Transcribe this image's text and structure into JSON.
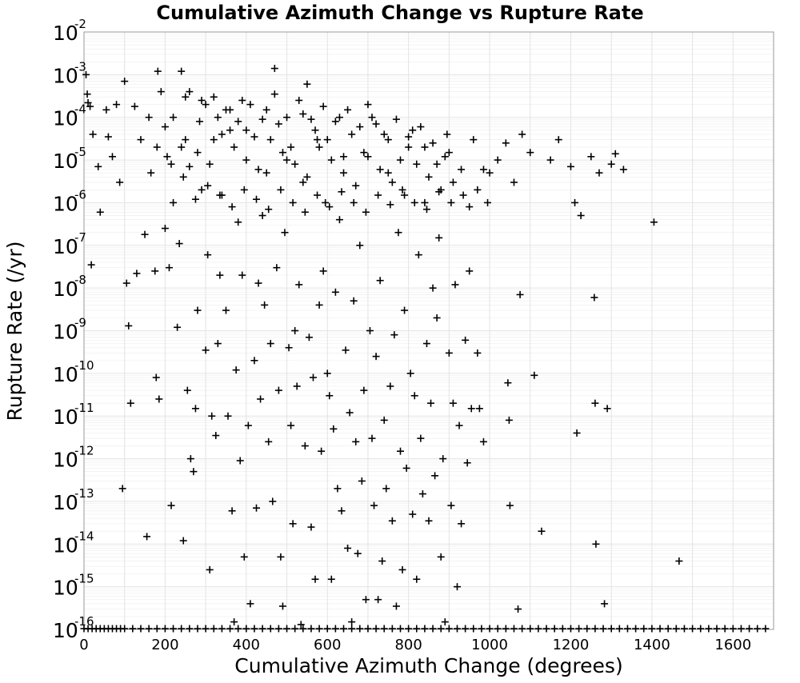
{
  "chart_data": {
    "type": "scatter",
    "title": "Cumulative Azimuth Change vs Rupture Rate",
    "xlabel": "Cumulative Azimuth Change (degrees)",
    "ylabel": "Rupture Rate (/yr)",
    "xlim": [
      0,
      1700
    ],
    "ylim": [
      1e-16,
      0.01
    ],
    "yscale": "log",
    "grid": true,
    "marker": "+",
    "marker_color": "#000000",
    "x_ticks": [
      "0",
      "200",
      "400",
      "600",
      "800",
      "1000",
      "1200",
      "1400",
      "1600"
    ],
    "y_ticks": [
      {
        "base": "10",
        "exp": "-16"
      },
      {
        "base": "10",
        "exp": "-15"
      },
      {
        "base": "10",
        "exp": "-14"
      },
      {
        "base": "10",
        "exp": "-13"
      },
      {
        "base": "10",
        "exp": "-12"
      },
      {
        "base": "10",
        "exp": "-11"
      },
      {
        "base": "10",
        "exp": "-10"
      },
      {
        "base": "10",
        "exp": "-9"
      },
      {
        "base": "10",
        "exp": "-8"
      },
      {
        "base": "10",
        "exp": "-7"
      },
      {
        "base": "10",
        "exp": "-6"
      },
      {
        "base": "10",
        "exp": "-5"
      },
      {
        "base": "10",
        "exp": "-4"
      },
      {
        "base": "10",
        "exp": "-3"
      },
      {
        "base": "10",
        "exp": "-2"
      }
    ],
    "points": [
      [
        5,
        0.001
      ],
      [
        8,
        0.00035
      ],
      [
        10,
        0.00022
      ],
      [
        15,
        0.00018
      ],
      [
        18,
        3.5e-08
      ],
      [
        22,
        4e-05
      ],
      [
        35,
        7e-06
      ],
      [
        40,
        6e-07
      ],
      [
        55,
        0.00015
      ],
      [
        60,
        3.5e-05
      ],
      [
        70,
        1.2e-05
      ],
      [
        80,
        0.0002
      ],
      [
        88,
        3e-06
      ],
      [
        95,
        2e-13
      ],
      [
        100,
        0.0007
      ],
      [
        105,
        1.3e-08
      ],
      [
        110,
        1.3e-09
      ],
      [
        115,
        2e-11
      ],
      [
        125,
        0.00018
      ],
      [
        130,
        2.2e-08
      ],
      [
        140,
        3e-05
      ],
      [
        150,
        1.8e-07
      ],
      [
        155,
        1.5e-14
      ],
      [
        160,
        0.0001
      ],
      [
        165,
        5e-06
      ],
      [
        175,
        2.5e-08
      ],
      [
        178,
        8e-11
      ],
      [
        182,
        0.0012
      ],
      [
        185,
        2.5e-11
      ],
      [
        190,
        0.0004
      ],
      [
        200,
        2.5e-07
      ],
      [
        205,
        1.2e-05
      ],
      [
        210,
        3e-08
      ],
      [
        215,
        8e-14
      ],
      [
        220,
        1e-06
      ],
      [
        230,
        1.2e-09
      ],
      [
        235,
        1.1e-07
      ],
      [
        240,
        0.0012
      ],
      [
        245,
        1.2e-14
      ],
      [
        250,
        0.0003
      ],
      [
        255,
        4e-11
      ],
      [
        260,
        7e-06
      ],
      [
        263,
        1e-12
      ],
      [
        270,
        5e-13
      ],
      [
        275,
        1.5e-11
      ],
      [
        280,
        3e-09
      ],
      [
        285,
        8e-05
      ],
      [
        290,
        2e-06
      ],
      [
        300,
        3.5e-10
      ],
      [
        305,
        6e-08
      ],
      [
        310,
        2.5e-15
      ],
      [
        315,
        1e-11
      ],
      [
        320,
        3e-05
      ],
      [
        325,
        3.5e-12
      ],
      [
        330,
        5e-10
      ],
      [
        335,
        2e-08
      ],
      [
        340,
        1.5e-06
      ],
      [
        350,
        3e-09
      ],
      [
        355,
        1e-11
      ],
      [
        360,
        0.00015
      ],
      [
        365,
        6e-14
      ],
      [
        370,
        1.5e-16
      ],
      [
        375,
        1.2e-10
      ],
      [
        380,
        3.5e-07
      ],
      [
        385,
        9e-13
      ],
      [
        390,
        2e-08
      ],
      [
        395,
        5e-15
      ],
      [
        400,
        5e-05
      ],
      [
        405,
        6e-12
      ],
      [
        410,
        4e-16
      ],
      [
        420,
        2e-10
      ],
      [
        425,
        7e-14
      ],
      [
        430,
        1.3e-08
      ],
      [
        435,
        2.5e-11
      ],
      [
        440,
        5e-07
      ],
      [
        445,
        4e-09
      ],
      [
        450,
        5e-06
      ],
      [
        455,
        2.5e-12
      ],
      [
        460,
        5e-10
      ],
      [
        465,
        1e-13
      ],
      [
        470,
        0.0014
      ],
      [
        475,
        3e-08
      ],
      [
        480,
        4e-11
      ],
      [
        485,
        5e-15
      ],
      [
        490,
        3.5e-16
      ],
      [
        495,
        2e-07
      ],
      [
        500,
        1e-05
      ],
      [
        505,
        4e-10
      ],
      [
        510,
        6e-12
      ],
      [
        515,
        3e-14
      ],
      [
        520,
        1e-09
      ],
      [
        525,
        5e-11
      ],
      [
        530,
        1.2e-08
      ],
      [
        535,
        1.3e-16
      ],
      [
        540,
        3e-06
      ],
      [
        545,
        2e-12
      ],
      [
        550,
        0.0006
      ],
      [
        555,
        7e-10
      ],
      [
        560,
        2.5e-14
      ],
      [
        565,
        8e-11
      ],
      [
        570,
        1.5e-15
      ],
      [
        575,
        3e-05
      ],
      [
        580,
        4e-09
      ],
      [
        585,
        1.5e-12
      ],
      [
        590,
        2.5e-08
      ],
      [
        595,
        1e-06
      ],
      [
        600,
        1e-10
      ],
      [
        605,
        3e-11
      ],
      [
        610,
        1.5e-15
      ],
      [
        615,
        5e-12
      ],
      [
        620,
        8e-09
      ],
      [
        625,
        2e-13
      ],
      [
        630,
        4e-07
      ],
      [
        635,
        6e-14
      ],
      [
        640,
        1.2e-05
      ],
      [
        645,
        3.5e-10
      ],
      [
        650,
        8e-15
      ],
      [
        655,
        1.2e-11
      ],
      [
        660,
        1.5e-16
      ],
      [
        665,
        5e-09
      ],
      [
        670,
        2.5e-12
      ],
      [
        675,
        6e-15
      ],
      [
        680,
        1e-07
      ],
      [
        685,
        3e-13
      ],
      [
        690,
        4e-11
      ],
      [
        695,
        5e-16
      ],
      [
        700,
        0.0002
      ],
      [
        705,
        1e-09
      ],
      [
        710,
        3e-12
      ],
      [
        715,
        8e-14
      ],
      [
        720,
        2.5e-10
      ],
      [
        725,
        5e-16
      ],
      [
        730,
        1.5e-08
      ],
      [
        735,
        4e-15
      ],
      [
        740,
        8e-12
      ],
      [
        745,
        2e-13
      ],
      [
        750,
        5e-06
      ],
      [
        755,
        5e-11
      ],
      [
        760,
        3.5e-14
      ],
      [
        765,
        8e-10
      ],
      [
        770,
        3.5e-16
      ],
      [
        775,
        2e-07
      ],
      [
        780,
        1.5e-12
      ],
      [
        785,
        2.5e-15
      ],
      [
        790,
        3e-09
      ],
      [
        795,
        6e-13
      ],
      [
        800,
        2e-05
      ],
      [
        805,
        1e-10
      ],
      [
        810,
        5e-14
      ],
      [
        815,
        3e-11
      ],
      [
        820,
        1.5e-15
      ],
      [
        825,
        6e-08
      ],
      [
        830,
        3e-12
      ],
      [
        835,
        1.5e-13
      ],
      [
        840,
        1e-06
      ],
      [
        845,
        5e-10
      ],
      [
        850,
        3.5e-14
      ],
      [
        855,
        2e-11
      ],
      [
        860,
        1e-08
      ],
      [
        865,
        4e-13
      ],
      [
        870,
        2e-09
      ],
      [
        875,
        1.5e-07
      ],
      [
        880,
        5e-15
      ],
      [
        885,
        1e-12
      ],
      [
        890,
        1.5e-16
      ],
      [
        895,
        4e-05
      ],
      [
        900,
        3e-10
      ],
      [
        905,
        8e-14
      ],
      [
        910,
        2e-11
      ],
      [
        915,
        1.2e-08
      ],
      [
        920,
        1e-15
      ],
      [
        925,
        6e-12
      ],
      [
        930,
        3e-14
      ],
      [
        935,
        1.5e-06
      ],
      [
        940,
        6e-10
      ],
      [
        945,
        8e-13
      ],
      [
        950,
        2.5e-08
      ],
      [
        955,
        1.5e-11
      ],
      [
        960,
        3e-05
      ],
      [
        970,
        3e-10
      ],
      [
        975,
        1.5e-11
      ],
      [
        985,
        2.5e-12
      ],
      [
        995,
        1e-06
      ],
      [
        1000,
        5e-06
      ],
      [
        1020,
        1e-05
      ],
      [
        1040,
        2.5e-05
      ],
      [
        1045,
        6e-11
      ],
      [
        1048,
        8e-12
      ],
      [
        1050,
        8e-14
      ],
      [
        1060,
        3e-06
      ],
      [
        1070,
        3e-16
      ],
      [
        1075,
        7e-09
      ],
      [
        1080,
        4e-05
      ],
      [
        1100,
        1.5e-05
      ],
      [
        1110,
        9e-11
      ],
      [
        1128,
        2e-14
      ],
      [
        1150,
        1e-05
      ],
      [
        1170,
        3e-05
      ],
      [
        1200,
        7e-06
      ],
      [
        1210,
        1e-06
      ],
      [
        1215,
        4e-12
      ],
      [
        1225,
        5e-07
      ],
      [
        1250,
        1.2e-05
      ],
      [
        1258,
        6e-09
      ],
      [
        1260,
        2e-11
      ],
      [
        1262,
        1e-14
      ],
      [
        1270,
        5e-06
      ],
      [
        1283,
        4e-16
      ],
      [
        1290,
        1.5e-11
      ],
      [
        1300,
        8e-06
      ],
      [
        1310,
        1.4e-05
      ],
      [
        1330,
        6e-06
      ],
      [
        1405,
        3.5e-07
      ],
      [
        1467,
        4e-15
      ],
      [
        300,
        0.0002
      ],
      [
        330,
        0.0001
      ],
      [
        360,
        5e-05
      ],
      [
        390,
        0.00025
      ],
      [
        420,
        3.5e-05
      ],
      [
        450,
        0.00015
      ],
      [
        480,
        7e-05
      ],
      [
        510,
        2e-05
      ],
      [
        540,
        0.00012
      ],
      [
        570,
        5e-05
      ],
      [
        600,
        3e-05
      ],
      [
        630,
        0.0001
      ],
      [
        660,
        4e-05
      ],
      [
        690,
        1.5e-05
      ],
      [
        720,
        7e-05
      ],
      [
        750,
        3e-05
      ],
      [
        780,
        1e-05
      ],
      [
        810,
        5e-05
      ],
      [
        840,
        2e-05
      ],
      [
        870,
        8e-06
      ],
      [
        900,
        1.5e-05
      ],
      [
        930,
        6e-06
      ],
      [
        250,
        3e-05
      ],
      [
        280,
        1.5e-05
      ],
      [
        310,
        8e-06
      ],
      [
        340,
        4e-05
      ],
      [
        370,
        2e-05
      ],
      [
        400,
        1e-05
      ],
      [
        430,
        6e-06
      ],
      [
        460,
        3e-05
      ],
      [
        490,
        1.5e-05
      ],
      [
        520,
        8e-06
      ],
      [
        550,
        4e-06
      ],
      [
        580,
        2e-05
      ],
      [
        610,
        1e-05
      ],
      [
        640,
        5e-06
      ],
      [
        670,
        2.5e-06
      ],
      [
        700,
        1.2e-05
      ],
      [
        730,
        6e-06
      ],
      [
        760,
        3e-06
      ],
      [
        790,
        1.5e-06
      ],
      [
        820,
        8e-06
      ],
      [
        850,
        4e-06
      ],
      [
        880,
        2e-06
      ],
      [
        910,
        3e-06
      ],
      [
        200,
        6e-05
      ],
      [
        220,
        0.0001
      ],
      [
        240,
        2e-05
      ],
      [
        260,
        0.0004
      ],
      [
        290,
        0.00025
      ],
      [
        320,
        0.0003
      ],
      [
        350,
        0.00015
      ],
      [
        380,
        8e-05
      ],
      [
        410,
        0.0002
      ],
      [
        440,
        9e-05
      ],
      [
        470,
        0.00035
      ],
      [
        500,
        0.0001
      ],
      [
        530,
        0.00025
      ],
      [
        560,
        9e-05
      ],
      [
        590,
        0.00018
      ],
      [
        620,
        8e-05
      ],
      [
        650,
        0.00015
      ],
      [
        680,
        6e-05
      ],
      [
        710,
        0.0001
      ],
      [
        740,
        4e-05
      ],
      [
        770,
        9e-05
      ],
      [
        800,
        3.5e-05
      ],
      [
        830,
        6e-05
      ],
      [
        860,
        2.5e-05
      ],
      [
        890,
        1.2e-05
      ],
      [
        180,
        2e-05
      ],
      [
        215,
        8e-06
      ],
      [
        245,
        4e-06
      ],
      [
        275,
        1.2e-06
      ],
      [
        305,
        2.5e-06
      ],
      [
        335,
        1.5e-06
      ],
      [
        365,
        8e-07
      ],
      [
        395,
        2e-06
      ],
      [
        425,
        1.2e-06
      ],
      [
        455,
        7e-07
      ],
      [
        485,
        2e-06
      ],
      [
        515,
        1e-06
      ],
      [
        545,
        6e-07
      ],
      [
        575,
        1.5e-06
      ],
      [
        605,
        8e-07
      ],
      [
        635,
        1.8e-06
      ],
      [
        665,
        1e-06
      ],
      [
        695,
        6e-07
      ],
      [
        725,
        1.5e-06
      ],
      [
        755,
        9e-07
      ],
      [
        785,
        2e-06
      ],
      [
        815,
        1e-06
      ],
      [
        845,
        7e-07
      ],
      [
        875,
        1.8e-06
      ],
      [
        905,
        1e-06
      ],
      [
        950,
        8e-07
      ],
      [
        970,
        2e-06
      ],
      [
        985,
        6e-06
      ]
    ],
    "baseline_points_at_ymin": [
      0,
      10,
      20,
      30,
      40,
      50,
      60,
      70,
      80,
      90,
      100,
      120,
      140,
      160,
      180,
      200,
      220,
      240,
      260,
      280,
      300,
      320,
      340,
      360,
      380,
      400,
      420,
      440,
      460,
      480,
      500,
      520,
      540,
      560,
      580,
      600,
      620,
      640,
      660,
      680,
      700,
      720,
      740,
      760,
      780,
      800,
      820,
      840,
      860,
      880,
      900,
      920,
      940,
      960,
      980,
      1000,
      1020,
      1040,
      1060,
      1080,
      1100,
      1120,
      1140,
      1160,
      1180,
      1200,
      1220,
      1240,
      1260,
      1280,
      1300,
      1320,
      1340,
      1360,
      1380,
      1400,
      1420,
      1440,
      1460,
      1480,
      1500,
      1520,
      1540,
      1560,
      1580,
      1600,
      1620,
      1640,
      1660,
      1680
    ]
  }
}
